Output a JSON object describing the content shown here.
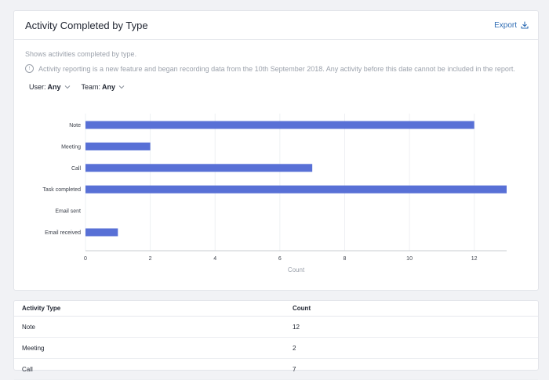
{
  "report": {
    "title": "Activity Completed by Type",
    "export_label": "Export",
    "description": "Shows activities completed by type.",
    "notice": "Activity reporting is a new feature and began recording data from the 10th September 2018. Any activity before this date cannot be included in the report.",
    "filters": {
      "user_label": "User:",
      "user_value": "Any",
      "team_label": "Team:",
      "team_value": "Any"
    }
  },
  "colors": {
    "bar": "#5870d6",
    "accent": "#2d6bb3"
  },
  "chart_data": {
    "type": "bar",
    "orientation": "horizontal",
    "categories": [
      "Note",
      "Meeting",
      "Call",
      "Task completed",
      "Email sent",
      "Email received"
    ],
    "values": [
      12,
      2,
      7,
      13,
      0,
      1
    ],
    "xlabel": "Count",
    "ylabel": "",
    "xlim": [
      0,
      13
    ],
    "xticks": [
      0,
      2,
      4,
      6,
      8,
      10,
      12
    ],
    "grid": true
  },
  "table": {
    "headers": [
      "Activity Type",
      "Count"
    ],
    "rows": [
      [
        "Note",
        "12"
      ],
      [
        "Meeting",
        "2"
      ],
      [
        "Call",
        "7"
      ]
    ]
  }
}
